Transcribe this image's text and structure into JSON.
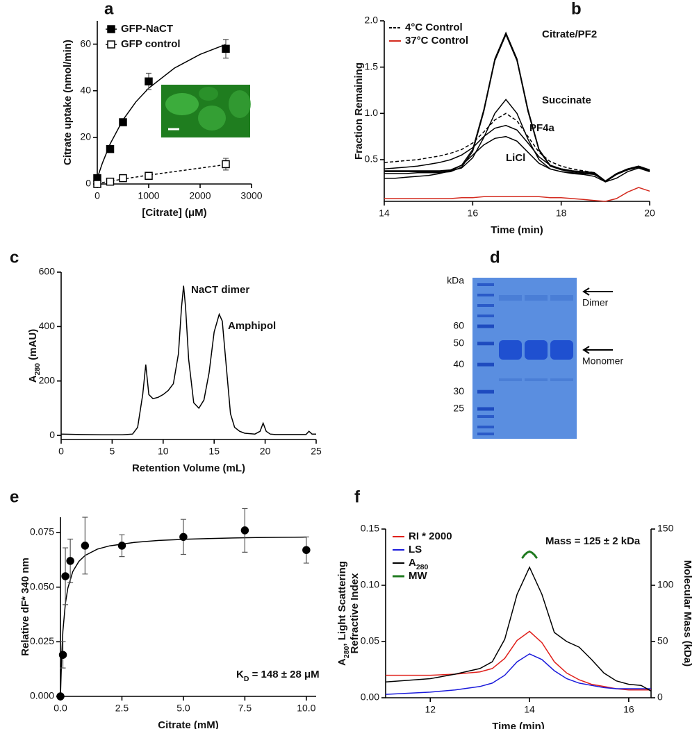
{
  "chart_data": [
    {
      "panel": "a",
      "type": "scatter",
      "xlabel": "[Citrate] (μM)",
      "ylabel": "Citrate uptake (nmol/min)",
      "xlim": [
        0,
        3000
      ],
      "xticks": [
        0,
        1000,
        2000,
        3000
      ],
      "ylim": [
        0,
        70
      ],
      "yticks": [
        0,
        20,
        40,
        60
      ],
      "legend": true,
      "series": [
        {
          "name": "GFP-NaCT",
          "color": "#000000",
          "marker": "square",
          "filled": true,
          "x": [
            0,
            250,
            500,
            1000,
            2500
          ],
          "values": [
            2.5,
            15,
            26.5,
            44,
            58
          ],
          "errors": [
            0,
            0.5,
            0.5,
            3.5,
            4
          ],
          "fit_x": [
            0,
            100,
            250,
            500,
            750,
            1000,
            1500,
            2000,
            2500
          ],
          "fit": [
            2.5,
            9.0,
            17.2,
            27.5,
            35.2,
            41.1,
            49.7,
            55.6,
            59.9
          ],
          "fit_dash": false
        },
        {
          "name": "GFP control",
          "color": "#000000",
          "marker": "square",
          "filled": false,
          "x": [
            0,
            250,
            500,
            1000,
            2500
          ],
          "values": [
            0,
            1,
            2.5,
            3.5,
            8.5
          ],
          "errors": [
            0,
            0,
            0,
            0,
            2.5
          ],
          "fit_x": [
            0,
            250,
            500,
            1000,
            2500
          ],
          "fit": [
            0.2,
            1.2,
            2.1,
            3.8,
            8.3
          ],
          "fit_dash": true
        }
      ]
    },
    {
      "panel": "b",
      "type": "line",
      "xlabel": "Time (min)",
      "ylabel": "Fraction Remaining",
      "xlim": [
        14,
        20
      ],
      "xticks": [
        14,
        16,
        18,
        20
      ],
      "ylim": [
        0.05,
        2.0
      ],
      "yticks": [
        0.5,
        {
          "value": 1,
          "label": "1.0"
        },
        1.5,
        {
          "value": 2,
          "label": "2.0"
        }
      ],
      "legend": true,
      "x": [
        14,
        14.25,
        14.5,
        14.75,
        15,
        15.25,
        15.5,
        15.75,
        16,
        16.25,
        16.5,
        16.75,
        17,
        17.25,
        17.5,
        17.75,
        18,
        18.25,
        18.5,
        18.75,
        19,
        19.25,
        19.5,
        19.75,
        20
      ],
      "series": [
        {
          "name": "Citrate/PF2",
          "color": "#000000",
          "legend": false,
          "values": [
            0.38,
            0.38,
            0.38,
            0.38,
            0.38,
            0.38,
            0.39,
            0.44,
            0.61,
            1.04,
            1.59,
            1.87,
            1.59,
            1.04,
            0.61,
            0.44,
            0.4,
            0.38,
            0.37,
            0.36,
            0.27,
            0.35,
            0.4,
            0.43,
            0.39
          ]
        },
        {
          "color": "#000000",
          "legend": false,
          "values": [
            0.35,
            0.35,
            0.35,
            0.36,
            0.36,
            0.36,
            0.37,
            0.42,
            0.59,
            1.02,
            1.57,
            1.85,
            1.57,
            1.02,
            0.6,
            0.43,
            0.39,
            0.37,
            0.36,
            0.35,
            0.26,
            0.34,
            0.39,
            0.42,
            0.38
          ]
        },
        {
          "name": "Succinate",
          "color": "#000000",
          "legend": false,
          "values": [
            0.37,
            0.37,
            0.37,
            0.37,
            0.37,
            0.37,
            0.38,
            0.41,
            0.52,
            0.74,
            1.0,
            1.15,
            1.0,
            0.72,
            0.5,
            0.4,
            0.37,
            0.36,
            0.35,
            0.34,
            0.27,
            0.34,
            0.39,
            0.42,
            0.38
          ]
        },
        {
          "name": "4°C Control",
          "color": "#000000",
          "dash": true,
          "legend": true,
          "values": [
            0.47,
            0.48,
            0.49,
            0.5,
            0.52,
            0.54,
            0.57,
            0.61,
            0.68,
            0.8,
            0.93,
            1.0,
            0.92,
            0.75,
            0.58,
            0.48,
            0.43,
            0.4,
            0.38,
            0.36,
            0.27,
            0.35,
            0.4,
            0.42,
            0.38
          ]
        },
        {
          "name": "PF4a",
          "color": "#000000",
          "legend": false,
          "values": [
            0.4,
            0.41,
            0.42,
            0.43,
            0.45,
            0.47,
            0.5,
            0.55,
            0.63,
            0.75,
            0.84,
            0.87,
            0.82,
            0.68,
            0.53,
            0.44,
            0.4,
            0.38,
            0.37,
            0.36,
            0.27,
            0.35,
            0.4,
            0.43,
            0.39
          ]
        },
        {
          "name": "LiCl",
          "color": "#000000",
          "legend": false,
          "values": [
            0.3,
            0.3,
            0.31,
            0.32,
            0.33,
            0.35,
            0.38,
            0.44,
            0.55,
            0.66,
            0.73,
            0.75,
            0.7,
            0.58,
            0.46,
            0.4,
            0.37,
            0.35,
            0.34,
            0.32,
            0.26,
            0.3,
            0.37,
            0.41,
            0.37
          ]
        },
        {
          "name": "37°C Control",
          "color": "#d42a1e",
          "legend": true,
          "values": [
            0.08,
            0.08,
            0.08,
            0.08,
            0.08,
            0.08,
            0.08,
            0.09,
            0.09,
            0.1,
            0.1,
            0.1,
            0.1,
            0.1,
            0.1,
            0.09,
            0.09,
            0.08,
            0.07,
            0.06,
            0.05,
            0.08,
            0.15,
            0.2,
            0.16
          ]
        }
      ]
    },
    {
      "panel": "c",
      "type": "line",
      "xlabel": "Retention Volume (mL)",
      "ylabel": "A280 (mAU)",
      "ylabel_sub": [
        1,
        4
      ],
      "xlim": [
        0,
        25
      ],
      "xticks": [
        0,
        5,
        10,
        15,
        20,
        25
      ],
      "ylim": [
        -15,
        600
      ],
      "yticks": [
        0,
        200,
        400,
        600
      ],
      "annotations": [
        "NaCT dimer",
        "Amphipol"
      ],
      "x": [
        0,
        2,
        4,
        6,
        7,
        7.5,
        8,
        8.3,
        8.6,
        9,
        9.5,
        10,
        10.5,
        11,
        11.5,
        11.8,
        12,
        12.2,
        12.5,
        13,
        13.5,
        14,
        14.5,
        15,
        15.5,
        15.8,
        16.2,
        16.6,
        17,
        17.5,
        18,
        19,
        19.5,
        19.8,
        20.1,
        20.5,
        21,
        22,
        23,
        24,
        24.3,
        24.6,
        25
      ],
      "series": [
        {
          "color": "#000000",
          "values": [
            5,
            3,
            2,
            2,
            5,
            30,
            150,
            260,
            150,
            135,
            140,
            150,
            165,
            190,
            300,
            470,
            550,
            470,
            280,
            120,
            100,
            130,
            230,
            380,
            445,
            420,
            250,
            80,
            30,
            15,
            8,
            5,
            15,
            45,
            15,
            5,
            3,
            3,
            3,
            3,
            15,
            5,
            5
          ]
        }
      ]
    },
    {
      "panel": "d",
      "type": "gel",
      "unit": "kDa",
      "ladder": [
        60,
        50,
        40,
        30,
        25
      ],
      "bands": [
        "Dimer",
        "Monomer"
      ]
    },
    {
      "panel": "e",
      "type": "scatter",
      "xlabel": "Citrate (mM)",
      "ylabel": "Relative dF* 340 nm",
      "xlim": [
        0,
        10.4
      ],
      "xticks": [
        {
          "value": 0,
          "label": "0.0"
        },
        2.5,
        {
          "value": 5,
          "label": "5.0"
        },
        7.5,
        {
          "value": 10,
          "label": "10.0"
        }
      ],
      "ylim": [
        0,
        0.082
      ],
      "yticks": [
        {
          "value": 0,
          "label": "0.000"
        },
        0.025,
        {
          "value": 0.05,
          "label": "0.050"
        },
        0.075
      ],
      "legend": false,
      "annotations": [
        "KD = 148 ± 28 μM"
      ],
      "annotation_sub": [
        1,
        2
      ],
      "series": [
        {
          "color": "#000000",
          "marker": "circle",
          "filled": true,
          "x": [
            0,
            0.1,
            0.2,
            0.4,
            1.0,
            2.5,
            5,
            7.5,
            10
          ],
          "values": [
            0,
            0.019,
            0.055,
            0.062,
            0.069,
            0.069,
            0.073,
            0.076,
            0.067
          ],
          "errors": [
            0,
            0.006,
            0.013,
            0.01,
            0.013,
            0.005,
            0.008,
            0.01,
            0.006
          ],
          "fit_x": [
            0,
            0.05,
            0.1,
            0.2,
            0.3,
            0.5,
            0.75,
            1,
            1.5,
            2,
            3,
            4,
            5,
            6,
            7,
            8,
            9,
            10
          ],
          "fit": [
            0,
            0.0187,
            0.0298,
            0.0425,
            0.0495,
            0.0571,
            0.0618,
            0.0645,
            0.0674,
            0.0689,
            0.0705,
            0.0714,
            0.0719,
            0.0722,
            0.0725,
            0.0727,
            0.0728,
            0.0729
          ],
          "fit_dash": false
        }
      ]
    },
    {
      "panel": "f",
      "type": "line",
      "xlabel": "Time (min)",
      "ylabel": [
        "A280, Light Scattering",
        "Refractive Index"
      ],
      "ylabel_sub": [
        1,
        4
      ],
      "y2label": "Molecular Mass (kDa)",
      "xlim": [
        11.1,
        16.45
      ],
      "xticks": [
        12,
        14,
        16
      ],
      "ylim": [
        0,
        0.15
      ],
      "yticks": [
        {
          "value": 0,
          "label": "0.00"
        },
        0.05,
        {
          "value": 0.1,
          "label": "0.10"
        },
        0.15
      ],
      "y2lim": [
        0,
        150
      ],
      "y2ticks": [
        0,
        50,
        100,
        150
      ],
      "legend": true,
      "annotations": [
        "Mass = 125 ± 2 kDa"
      ],
      "x": [
        11.1,
        12,
        12.5,
        13,
        13.25,
        13.5,
        13.75,
        14,
        14.25,
        14.5,
        14.75,
        15,
        15.25,
        15.5,
        15.75,
        16,
        16.25,
        16.45
      ],
      "series": [
        {
          "name": "RI * 2000",
          "color": "#e0201b",
          "values": [
            0.02,
            0.02,
            0.021,
            0.023,
            0.026,
            0.035,
            0.051,
            0.059,
            0.049,
            0.032,
            0.022,
            0.016,
            0.012,
            0.01,
            0.008,
            0.007,
            0.007,
            0.007
          ]
        },
        {
          "name": "LS",
          "color": "#1a1adb",
          "values": [
            0.003,
            0.005,
            0.007,
            0.01,
            0.013,
            0.02,
            0.032,
            0.039,
            0.034,
            0.024,
            0.017,
            0.013,
            0.011,
            0.009,
            0.008,
            0.008,
            0.008,
            0.008
          ]
        },
        {
          "name": "A280",
          "name_sub": [
            1,
            4
          ],
          "color": "#000000",
          "values": [
            0.014,
            0.017,
            0.021,
            0.026,
            0.032,
            0.052,
            0.092,
            0.116,
            0.092,
            0.058,
            0.05,
            0.045,
            0.034,
            0.022,
            0.015,
            0.012,
            0.011,
            0.006
          ]
        },
        {
          "name": "MW",
          "color": "#1f7a1f",
          "axis": "y2",
          "width": 3,
          "x": [
            13.85,
            13.9,
            13.95,
            14.0,
            14.05,
            14.1,
            14.15
          ],
          "values": [
            124,
            127,
            129,
            130,
            129,
            127,
            124
          ]
        }
      ]
    }
  ]
}
